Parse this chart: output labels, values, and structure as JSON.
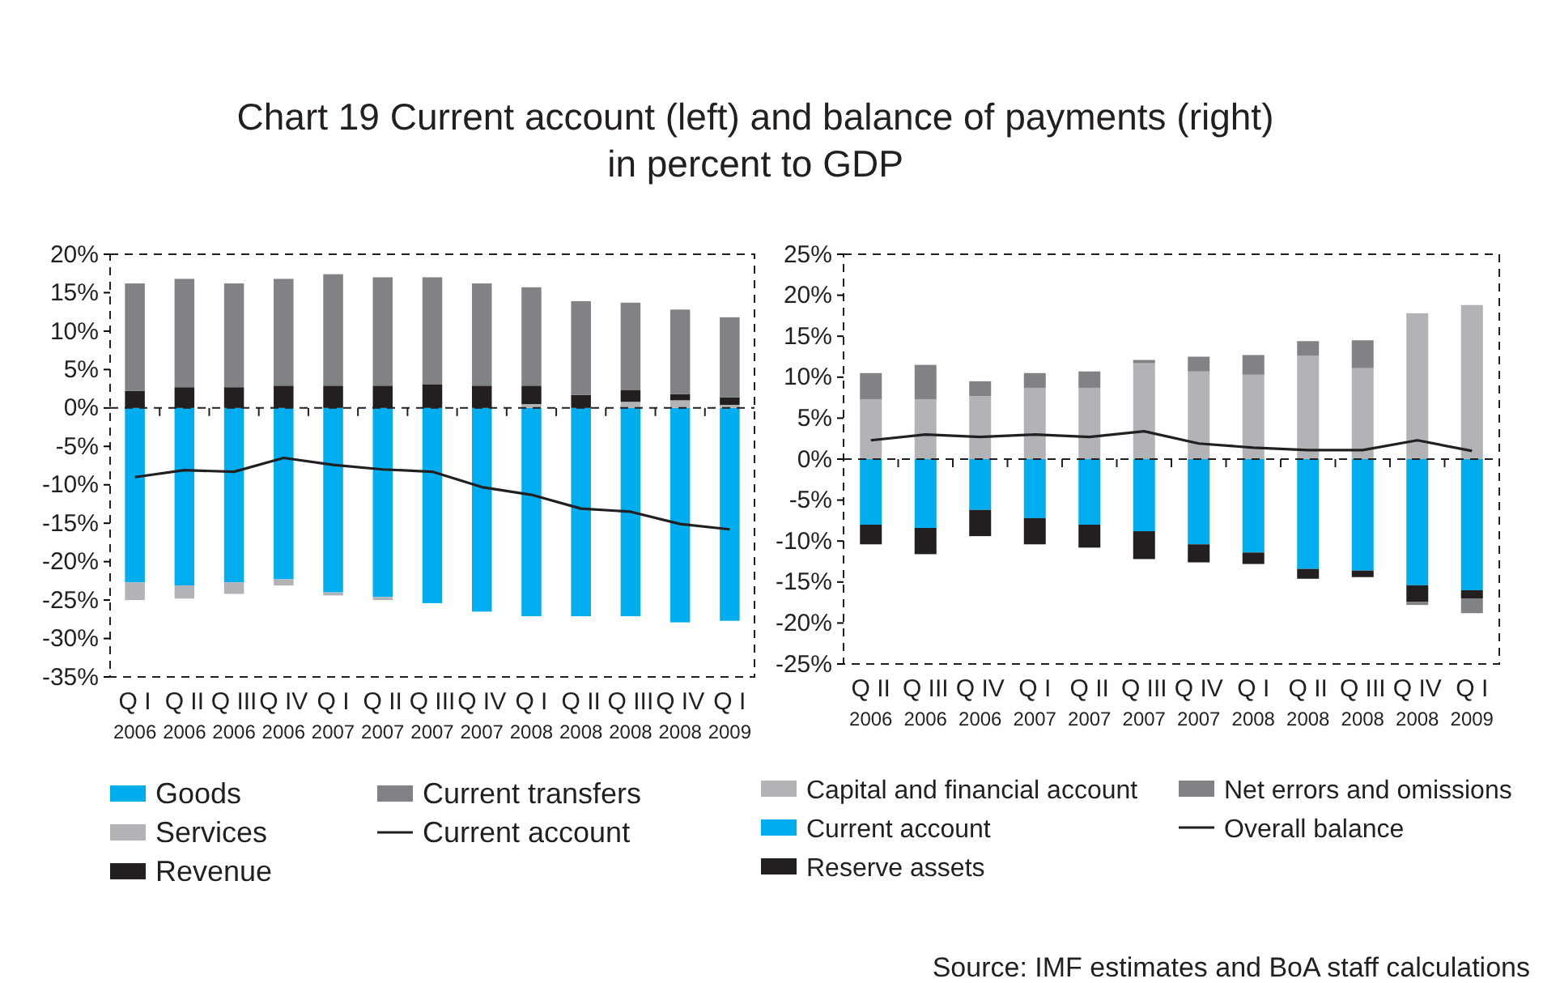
{
  "chart_data": [
    {
      "type": "bar",
      "stacked": true,
      "title": "Chart 19 Current account (left) and balance of payments (right)\nin percent to GDP",
      "categories": [
        "Q I\n2006",
        "Q II\n2006",
        "Q III\n2006",
        "Q IV\n2006",
        "Q I\n2007",
        "Q II\n2007",
        "Q III\n2007",
        "Q IV\n2007",
        "Q I\n2008",
        "Q II\n2008",
        "Q III\n2008",
        "Q IV\n2008",
        "Q I\n2009"
      ],
      "series": [
        {
          "name": "Goods",
          "color": "#00aeef",
          "values": [
            -22.7,
            -23.1,
            -22.7,
            -22.3,
            -24.0,
            -24.6,
            -25.4,
            -26.5,
            -27.1,
            -27.1,
            -27.1,
            -27.9,
            -27.7
          ]
        },
        {
          "name": "Services",
          "color": "#b1b3b6",
          "values": [
            -2.3,
            -1.7,
            -1.5,
            -0.8,
            -0.4,
            -0.4,
            0,
            null,
            0.5,
            0,
            0.8,
            1.0,
            0.4
          ]
        },
        {
          "name": "Revenue",
          "color": "#231f20",
          "values": [
            2.2,
            2.7,
            2.7,
            2.9,
            2.9,
            2.9,
            3.1,
            2.9,
            2.4,
            1.7,
            1.5,
            0.8,
            1.0
          ]
        },
        {
          "name": "Current transfers",
          "color": "#808285",
          "values": [
            14.0,
            14.1,
            13.5,
            13.9,
            14.5,
            14.1,
            13.9,
            13.3,
            12.8,
            12.2,
            11.4,
            11.0,
            10.4
          ]
        },
        {
          "name": "Current account",
          "type": "line",
          "color": "#231f20",
          "values": [
            -9.0,
            -8.1,
            -8.3,
            -6.5,
            -7.4,
            -8.0,
            -8.3,
            -10.3,
            -11.3,
            -13.1,
            -13.5,
            -15.1,
            -15.8
          ]
        }
      ],
      "ylim": [
        -35,
        20
      ],
      "yticks": [
        {
          "value": -35,
          "label": "-35%"
        },
        {
          "value": -30,
          "label": "-30%"
        },
        {
          "value": -25,
          "label": "-25%"
        },
        {
          "value": -20,
          "label": "-20%"
        },
        {
          "value": -15,
          "label": "-15%"
        },
        {
          "value": -10,
          "label": "-10%"
        },
        {
          "value": -5,
          "label": "-5%"
        },
        {
          "value": 0,
          "label": "0%"
        },
        {
          "value": 5,
          "label": "5%"
        },
        {
          "value": 10,
          "label": "10%"
        },
        {
          "value": 15,
          "label": "15%"
        },
        {
          "value": 20,
          "label": "20%"
        }
      ],
      "legend": "bottom",
      "marker": "none",
      "line_style": "solid"
    },
    {
      "type": "bar",
      "stacked": true,
      "categories": [
        "Q II\n2006",
        "Q III\n2006",
        "Q IV\n2006",
        "Q I\n2007",
        "Q II\n2007",
        "Q III\n2007",
        "Q IV\n2007",
        "Q I\n2008",
        "Q II\n2008",
        "Q III\n2008",
        "Q IV\n2008",
        "Q I\n2009"
      ],
      "series": [
        {
          "name": "Capital and financial account",
          "color": "#b1b3b6",
          "values": [
            7.3,
            7.3,
            7.7,
            8.7,
            8.7,
            11.7,
            10.7,
            10.3,
            12.6,
            11.1,
            17.8,
            18.8
          ]
        },
        {
          "name": "Current account",
          "color": "#00aeef",
          "values": [
            -8.0,
            -8.4,
            -6.2,
            -7.2,
            -8.0,
            -8.8,
            -10.4,
            -11.4,
            -13.4,
            -13.6,
            -15.4,
            -16.0
          ]
        },
        {
          "name": "Reserve assets",
          "color": "#231f20",
          "values": [
            -2.4,
            -3.2,
            -3.2,
            -3.2,
            -2.8,
            -3.4,
            -2.2,
            -1.4,
            -1.2,
            -0.8,
            -2.0,
            -1.0
          ]
        },
        {
          "name": "Net errors and omissions",
          "color": "#808285",
          "values": [
            3.2,
            4.2,
            1.8,
            1.8,
            2.0,
            0.4,
            1.8,
            2.4,
            1.8,
            3.4,
            -0.4,
            -1.8
          ]
        },
        {
          "name": "Overall balance",
          "type": "line",
          "color": "#231f20",
          "values": [
            2.3,
            3.0,
            2.7,
            3.0,
            2.7,
            3.4,
            1.9,
            1.4,
            1.1,
            1.1,
            2.3,
            1.0
          ]
        }
      ],
      "ylim": [
        -25,
        25
      ],
      "yticks": [
        {
          "value": -25,
          "label": "-25%"
        },
        {
          "value": -20,
          "label": "-20%"
        },
        {
          "value": -15,
          "label": "-15%"
        },
        {
          "value": -10,
          "label": "-10%"
        },
        {
          "value": -5,
          "label": "-5%"
        },
        {
          "value": 0,
          "label": "0%"
        },
        {
          "value": 5,
          "label": "5%"
        },
        {
          "value": 10,
          "label": "10%"
        },
        {
          "value": 15,
          "label": "15%"
        },
        {
          "value": 20,
          "label": "20%"
        },
        {
          "value": 25,
          "label": "25%"
        }
      ],
      "legend": "bottom",
      "marker": "none",
      "line_style": "solid",
      "annotations": [
        "Source: IMF estimates and BoA staff calculations"
      ]
    }
  ]
}
